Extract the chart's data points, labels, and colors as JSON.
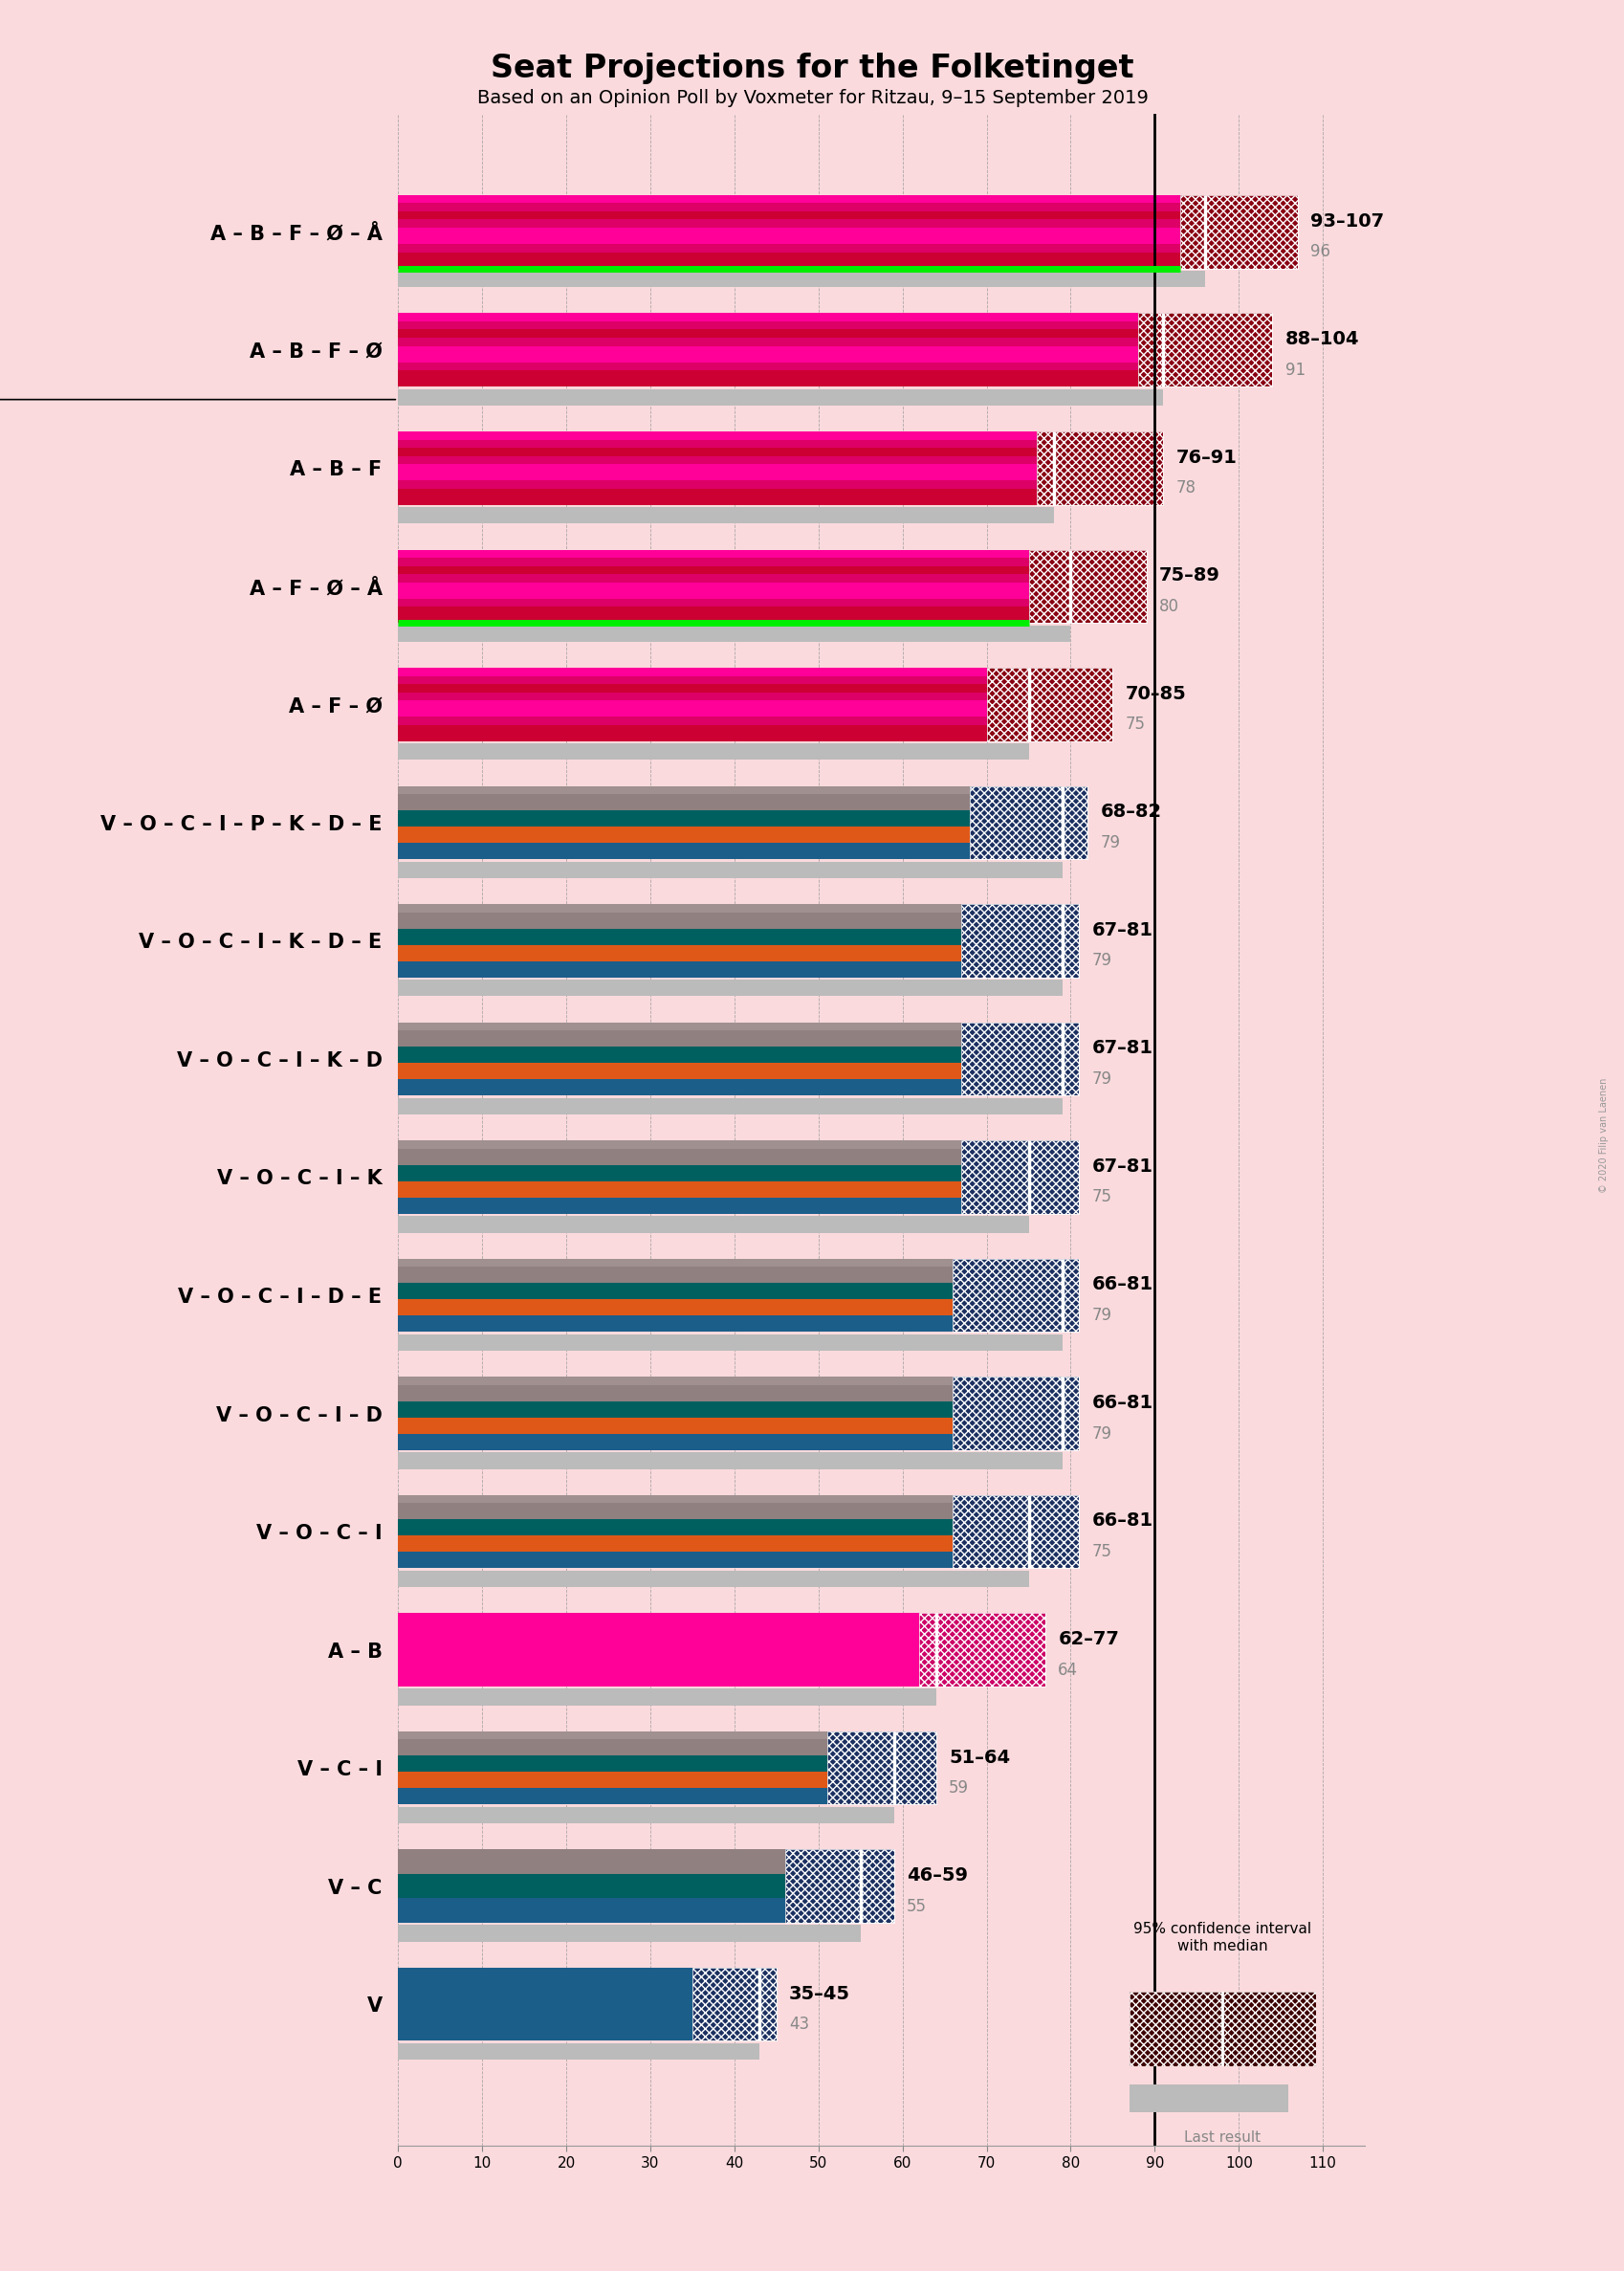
{
  "title": "Seat Projections for the Folketinget",
  "subtitle": "Based on an Opinion Poll by Voxmeter for Ritzau, 9–15 September 2019",
  "background_color": "#FADADD",
  "coalitions": [
    {
      "label": "A – B – F – Ø – Å",
      "underline": false,
      "ci_low": 93,
      "ci_high": 107,
      "median": 96,
      "last": 96,
      "stripe_colors": [
        "#CC0033",
        "#CC0033",
        "#DD0066",
        "#FF0099",
        "#FF0099",
        "#DD0066",
        "#CC0033",
        "#DD0066",
        "#FF0099"
      ],
      "ci_color": "#880011",
      "has_green": true
    },
    {
      "label": "A – B – F – Ø",
      "underline": true,
      "ci_low": 88,
      "ci_high": 104,
      "median": 91,
      "last": 91,
      "stripe_colors": [
        "#CC0033",
        "#CC0033",
        "#DD0066",
        "#FF0099",
        "#FF0099",
        "#DD0066",
        "#CC0033",
        "#DD0066",
        "#FF0099"
      ],
      "ci_color": "#880011",
      "has_green": false
    },
    {
      "label": "A – B – F",
      "underline": false,
      "ci_low": 76,
      "ci_high": 91,
      "median": 78,
      "last": 78,
      "stripe_colors": [
        "#CC0033",
        "#CC0033",
        "#DD0066",
        "#FF0099",
        "#FF0099",
        "#DD0066",
        "#CC0033",
        "#DD0066",
        "#FF0099"
      ],
      "ci_color": "#880011",
      "has_green": false
    },
    {
      "label": "A – F – Ø – Å",
      "underline": false,
      "ci_low": 75,
      "ci_high": 89,
      "median": 80,
      "last": 80,
      "stripe_colors": [
        "#CC0033",
        "#CC0033",
        "#DD0066",
        "#FF0099",
        "#FF0099",
        "#DD0066",
        "#CC0033",
        "#DD0066",
        "#FF0099"
      ],
      "ci_color": "#880011",
      "has_green": true
    },
    {
      "label": "A – F – Ø",
      "underline": false,
      "ci_low": 70,
      "ci_high": 85,
      "median": 75,
      "last": 75,
      "stripe_colors": [
        "#CC0033",
        "#CC0033",
        "#DD0066",
        "#FF0099",
        "#FF0099",
        "#DD0066",
        "#CC0033",
        "#DD0066",
        "#FF0099"
      ],
      "ci_color": "#880011",
      "has_green": false
    },
    {
      "label": "V – O – C – I – P – K – D – E",
      "underline": false,
      "ci_low": 68,
      "ci_high": 82,
      "median": 79,
      "last": 79,
      "stripe_colors": [
        "#1B5E8A",
        "#1B5E8A",
        "#E05818",
        "#E05818",
        "#006060",
        "#006060",
        "#908080",
        "#908080",
        "#A09090"
      ],
      "ci_color": "#1B3060",
      "has_green": false
    },
    {
      "label": "V – O – C – I – K – D – E",
      "underline": false,
      "ci_low": 67,
      "ci_high": 81,
      "median": 79,
      "last": 79,
      "stripe_colors": [
        "#1B5E8A",
        "#1B5E8A",
        "#E05818",
        "#E05818",
        "#006060",
        "#006060",
        "#908080",
        "#908080",
        "#A09090"
      ],
      "ci_color": "#1B3060",
      "has_green": false
    },
    {
      "label": "V – O – C – I – K – D",
      "underline": false,
      "ci_low": 67,
      "ci_high": 81,
      "median": 79,
      "last": 79,
      "stripe_colors": [
        "#1B5E8A",
        "#1B5E8A",
        "#E05818",
        "#E05818",
        "#006060",
        "#006060",
        "#908080",
        "#908080",
        "#A09090"
      ],
      "ci_color": "#1B3060",
      "has_green": false
    },
    {
      "label": "V – O – C – I – K",
      "underline": false,
      "ci_low": 67,
      "ci_high": 81,
      "median": 75,
      "last": 75,
      "stripe_colors": [
        "#1B5E8A",
        "#1B5E8A",
        "#E05818",
        "#E05818",
        "#006060",
        "#006060",
        "#908080",
        "#908080",
        "#A09090"
      ],
      "ci_color": "#1B3060",
      "has_green": false
    },
    {
      "label": "V – O – C – I – D – E",
      "underline": false,
      "ci_low": 66,
      "ci_high": 81,
      "median": 79,
      "last": 79,
      "stripe_colors": [
        "#1B5E8A",
        "#1B5E8A",
        "#E05818",
        "#E05818",
        "#006060",
        "#006060",
        "#908080",
        "#908080",
        "#A09090"
      ],
      "ci_color": "#1B3060",
      "has_green": false
    },
    {
      "label": "V – O – C – I – D",
      "underline": false,
      "ci_low": 66,
      "ci_high": 81,
      "median": 79,
      "last": 79,
      "stripe_colors": [
        "#1B5E8A",
        "#1B5E8A",
        "#E05818",
        "#E05818",
        "#006060",
        "#006060",
        "#908080",
        "#908080",
        "#A09090"
      ],
      "ci_color": "#1B3060",
      "has_green": false
    },
    {
      "label": "V – O – C – I",
      "underline": false,
      "ci_low": 66,
      "ci_high": 81,
      "median": 75,
      "last": 75,
      "stripe_colors": [
        "#1B5E8A",
        "#1B5E8A",
        "#E05818",
        "#E05818",
        "#006060",
        "#006060",
        "#908080",
        "#908080",
        "#A09090"
      ],
      "ci_color": "#1B3060",
      "has_green": false
    },
    {
      "label": "A – B",
      "underline": false,
      "ci_low": 62,
      "ci_high": 77,
      "median": 64,
      "last": 64,
      "stripe_colors": [
        "#FF0099",
        "#FF0099",
        "#FF0099",
        "#FF0099",
        "#FF0099",
        "#FF0099",
        "#FF0099",
        "#FF0099",
        "#FF0099"
      ],
      "ci_color": "#CC0066",
      "has_green": false
    },
    {
      "label": "V – C – I",
      "underline": false,
      "ci_low": 51,
      "ci_high": 64,
      "median": 59,
      "last": 59,
      "stripe_colors": [
        "#1B5E8A",
        "#1B5E8A",
        "#E05818",
        "#E05818",
        "#006060",
        "#006060",
        "#908080",
        "#908080",
        "#A09090"
      ],
      "ci_color": "#1B3060",
      "has_green": false
    },
    {
      "label": "V – C",
      "underline": false,
      "ci_low": 46,
      "ci_high": 59,
      "median": 55,
      "last": 55,
      "stripe_colors": [
        "#1B5E8A",
        "#1B5E8A",
        "#1B5E8A",
        "#006060",
        "#006060",
        "#006060",
        "#908080",
        "#908080",
        "#908080"
      ],
      "ci_color": "#1B3060",
      "has_green": false
    },
    {
      "label": "V",
      "underline": false,
      "ci_low": 35,
      "ci_high": 45,
      "median": 43,
      "last": 43,
      "stripe_colors": [
        "#1B5E8A",
        "#1B5E8A",
        "#1B5E8A",
        "#1B5E8A",
        "#1B5E8A",
        "#1B5E8A",
        "#1B5E8A",
        "#1B5E8A",
        "#1B5E8A"
      ],
      "ci_color": "#1B3060",
      "has_green": false
    }
  ],
  "x_min": 0,
  "x_max": 115,
  "x_ticks": [
    0,
    10,
    20,
    30,
    40,
    50,
    60,
    70,
    80,
    90,
    100,
    110
  ],
  "majority_line": 90,
  "bar_height": 0.62,
  "last_bar_height": 0.14,
  "last_color": "#BBBBBB",
  "green_color": "#00EE00",
  "green_linewidth": 5,
  "label_fontsize": 15,
  "tick_fontsize": 11,
  "range_fontsize": 14,
  "median_fontsize": 12,
  "title_fontsize": 24,
  "subtitle_fontsize": 14,
  "copyright_text": "© 2020 Filip van Laenen"
}
